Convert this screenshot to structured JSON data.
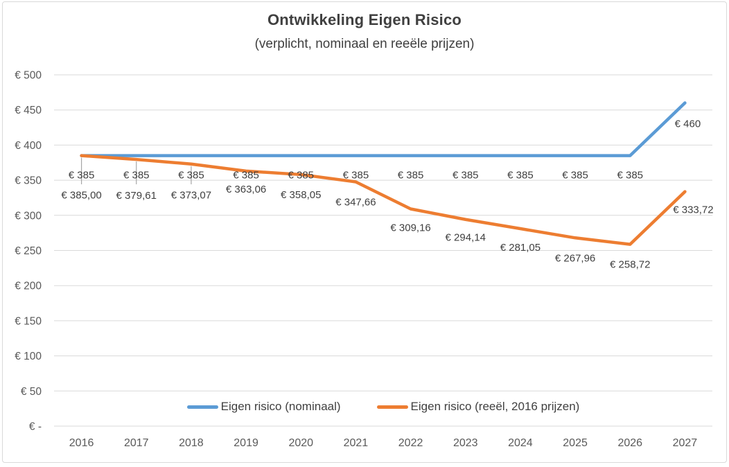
{
  "frame": {
    "border_color": "#D9D9D9",
    "background_color": "#FFFFFF"
  },
  "chart_data": {
    "type": "line",
    "title": "Ontwikkeling Eigen Risico",
    "subtitle": "(verplicht, nominaal en reeële prijzen)",
    "categories": [
      "2016",
      "2017",
      "2018",
      "2019",
      "2020",
      "2021",
      "2022",
      "2023",
      "2024",
      "2025",
      "2026",
      "2027"
    ],
    "series": [
      {
        "name": "Eigen risico (nominaal)",
        "color": "#5B9BD5",
        "values": [
          385,
          385,
          385,
          385,
          385,
          385,
          385,
          385,
          385,
          385,
          385,
          460
        ],
        "labels": [
          "€ 385",
          "€ 385",
          "€ 385",
          "€ 385",
          "€ 385",
          "€ 385",
          "€ 385",
          "€ 385",
          "€ 385",
          "€ 385",
          "€ 385",
          "€ 460"
        ]
      },
      {
        "name": "Eigen risico (reeël, 2016 prijzen)",
        "color": "#ED7D31",
        "values": [
          385.0,
          379.61,
          373.07,
          363.06,
          358.05,
          347.66,
          309.16,
          294.14,
          281.05,
          267.96,
          258.72,
          333.72
        ],
        "labels": [
          "€ 385,00",
          "€ 379,61",
          "€ 373,07",
          "€ 363,06",
          "€ 358,05",
          "€ 347,66",
          "€ 309,16",
          "€ 294,14",
          "€ 281,05",
          "€ 267,96",
          "€ 258,72",
          "€ 333,72"
        ]
      }
    ],
    "y_axis": {
      "min": 0,
      "max": 500,
      "step": 50,
      "tick_labels": [
        "€ -",
        "€ 50",
        "€ 100",
        "€ 150",
        "€ 200",
        "€ 250",
        "€ 300",
        "€ 350",
        "€ 400",
        "€ 450",
        "€ 500"
      ]
    },
    "gridlines": true,
    "gridline_color": "#D9D9D9",
    "leader_line_color": "#A6A6A6",
    "leader_line_indices": [
      0,
      1,
      2
    ],
    "legend_position": "bottom",
    "text_colors": {
      "title": "#404040",
      "axis": "#595959",
      "data_label": "#404040"
    }
  }
}
